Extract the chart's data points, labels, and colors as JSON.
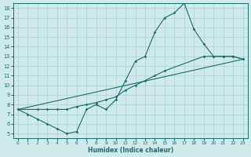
{
  "bg_color": "#ceeaea",
  "grid_color": "#aacfcf",
  "line_color": "#1a6b6b",
  "xlabel": "Humidex (Indice chaleur)",
  "xlim": [
    -0.5,
    23.5
  ],
  "ylim": [
    4.5,
    18.5
  ],
  "xtick_vals": [
    0,
    1,
    2,
    3,
    4,
    5,
    6,
    7,
    8,
    9,
    10,
    11,
    12,
    13,
    14,
    15,
    16,
    17,
    18,
    19,
    20,
    21,
    22,
    23
  ],
  "ytick_vals": [
    5,
    6,
    7,
    8,
    9,
    10,
    11,
    12,
    13,
    14,
    15,
    16,
    17,
    18
  ],
  "line1_x": [
    0,
    1,
    2,
    3,
    4,
    5,
    6,
    7,
    8,
    9,
    10,
    11,
    12,
    13,
    14,
    15,
    16,
    17,
    18,
    19,
    20,
    21,
    22,
    23
  ],
  "line1_y": [
    7.5,
    7.0,
    6.5,
    6.0,
    5.5,
    5.0,
    5.2,
    7.5,
    8.0,
    7.5,
    8.5,
    10.5,
    12.5,
    13.0,
    15.5,
    17.0,
    17.5,
    18.5,
    15.8,
    14.3,
    13.0,
    13.0,
    13.0,
    12.7
  ],
  "line2_x": [
    0,
    2,
    3,
    4,
    5,
    6,
    7,
    8,
    9,
    10,
    11,
    12,
    13,
    14,
    15,
    19,
    20,
    21,
    22,
    23
  ],
  "line2_y": [
    7.5,
    7.5,
    7.5,
    7.5,
    7.5,
    7.8,
    8.0,
    8.2,
    8.5,
    8.8,
    9.5,
    10.0,
    10.5,
    11.0,
    11.5,
    13.0,
    13.0,
    13.0,
    13.0,
    12.7
  ],
  "line3_x": [
    0,
    23
  ],
  "line3_y": [
    7.5,
    12.7
  ]
}
